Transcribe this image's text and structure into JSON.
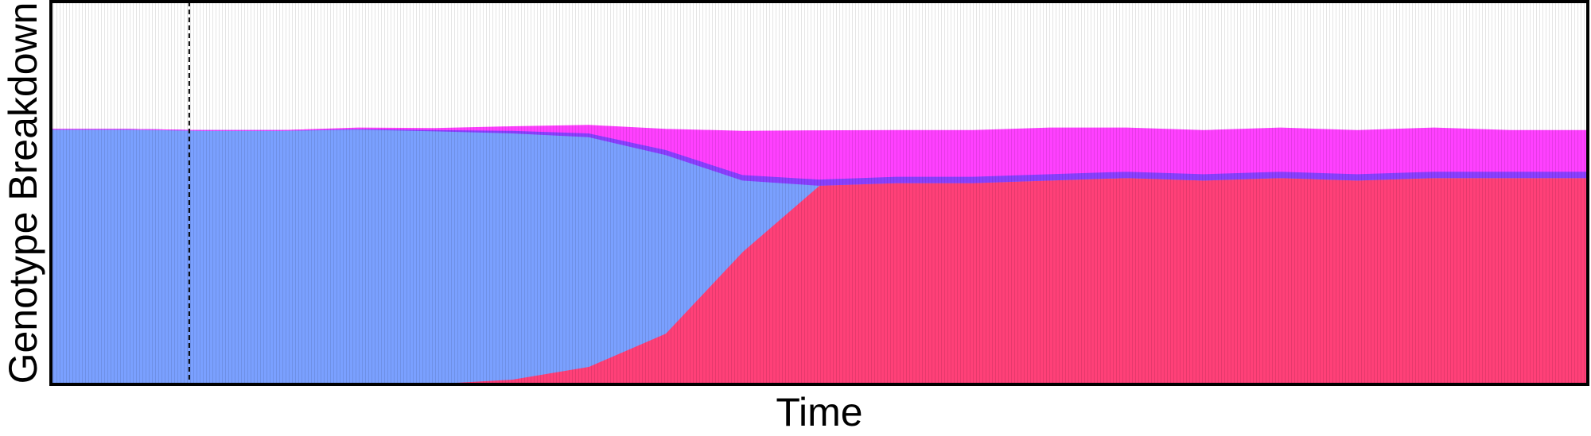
{
  "chart_data": {
    "type": "area",
    "stacked": true,
    "title": "",
    "xlabel": "Time",
    "ylabel": "Genotype Breakdown",
    "ylim": [
      0,
      1.5
    ],
    "xlim": [
      0,
      1
    ],
    "x": [
      0,
      0.05,
      0.1,
      0.15,
      0.2,
      0.25,
      0.3,
      0.35,
      0.4,
      0.45,
      0.5,
      0.55,
      0.6,
      0.65,
      0.7,
      0.75,
      0.8,
      0.85,
      0.9,
      0.95,
      1.0
    ],
    "series": [
      {
        "color": "#ff4078",
        "values": [
          0,
          0,
          0,
          0,
          0,
          0.003,
          0.02,
          0.07,
          0.2,
          0.52,
          0.78,
          0.79,
          0.79,
          0.8,
          0.81,
          0.8,
          0.81,
          0.8,
          0.81,
          0.81,
          0.81
        ]
      },
      {
        "color": "#7aa0ff",
        "values": [
          1.0,
          1.0,
          0.995,
          0.995,
          1.0,
          0.99,
          0.965,
          0.9,
          0.7,
          0.28,
          0.0,
          0.0,
          0.0,
          0.0,
          0.0,
          0.0,
          0.0,
          0.0,
          0.0,
          0.0,
          0.0
        ]
      },
      {
        "color": "#8a40ff",
        "values": [
          0,
          0,
          0,
          0,
          0.002,
          0.005,
          0.01,
          0.015,
          0.02,
          0.022,
          0.024,
          0.025,
          0.025,
          0.025,
          0.025,
          0.025,
          0.025,
          0.025,
          0.025,
          0.025,
          0.025
        ]
      },
      {
        "color": "#ff40ff",
        "values": [
          0,
          0,
          0,
          0,
          0.003,
          0.005,
          0.015,
          0.03,
          0.08,
          0.17,
          0.19,
          0.18,
          0.18,
          0.18,
          0.17,
          0.17,
          0.17,
          0.17,
          0.17,
          0.16,
          0.16
        ]
      }
    ],
    "vline": {
      "x": 0.09,
      "style": "dashed"
    },
    "grid": false,
    "legend": "none"
  }
}
